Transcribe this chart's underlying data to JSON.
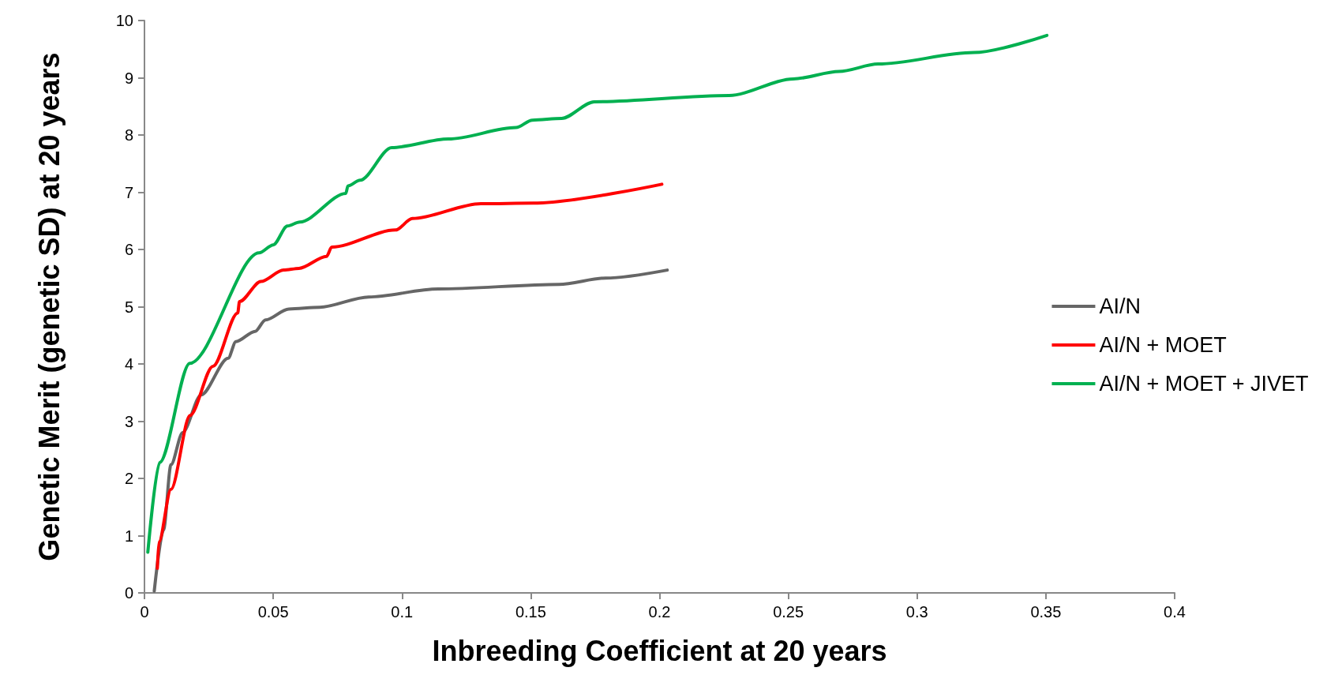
{
  "chart_data": {
    "type": "line",
    "xlabel": "Inbreeding Coefficient at 20 years",
    "ylabel": "Genetic Merit (genetic SD) at 20 years",
    "xlim": [
      0,
      0.4
    ],
    "xticks": [
      0,
      0.05,
      0.1,
      0.15,
      0.2,
      0.25,
      0.3,
      0.35,
      0.4
    ],
    "ylim": [
      0,
      10
    ],
    "yticks": [
      0,
      1,
      2,
      3,
      4,
      5,
      6,
      7,
      8,
      9,
      10
    ],
    "grid": false,
    "legend": "right",
    "marker": "none",
    "line_style": "solid",
    "series": [
      {
        "name": "AI/N",
        "color": "#666666",
        "x": [
          0.0038,
          0.0074,
          0.0103,
          0.0148,
          0.022,
          0.0325,
          0.0355,
          0.043,
          0.047,
          0.056,
          0.068,
          0.087,
          0.114,
          0.161,
          0.179,
          0.203
        ],
        "values": [
          0.03,
          1.1,
          2.24,
          2.8,
          3.46,
          4.1,
          4.39,
          4.57,
          4.77,
          4.96,
          4.99,
          5.17,
          5.31,
          5.39,
          5.5,
          5.64
        ]
      },
      {
        "name": "AI/N + MOET",
        "color": "#ff0000",
        "x": [
          0.005,
          0.0056,
          0.0103,
          0.0177,
          0.0266,
          0.0362,
          0.0369,
          0.0452,
          0.054,
          0.06,
          0.0707,
          0.0727,
          0.0975,
          0.104,
          0.1306,
          0.151,
          0.2009
        ],
        "values": [
          0.43,
          0.89,
          1.81,
          3.1,
          3.96,
          4.89,
          5.09,
          5.44,
          5.64,
          5.67,
          5.88,
          6.04,
          6.34,
          6.54,
          6.8,
          6.81,
          7.14
        ]
      },
      {
        "name": "AI/N + MOET + JIVET",
        "color": "#00b050",
        "x": [
          0.0013,
          0.0059,
          0.0176,
          0.0445,
          0.05,
          0.0555,
          0.0603,
          0.0782,
          0.079,
          0.0837,
          0.096,
          0.118,
          0.1443,
          0.1506,
          0.162,
          0.1746,
          0.227,
          0.252,
          0.2697,
          0.2848,
          0.322,
          0.3504
        ],
        "values": [
          0.71,
          2.28,
          4.01,
          5.94,
          6.08,
          6.41,
          6.48,
          6.98,
          7.11,
          7.21,
          7.78,
          7.93,
          8.13,
          8.26,
          8.29,
          8.58,
          8.69,
          8.98,
          9.11,
          9.24,
          9.44,
          9.74
        ]
      }
    ]
  }
}
